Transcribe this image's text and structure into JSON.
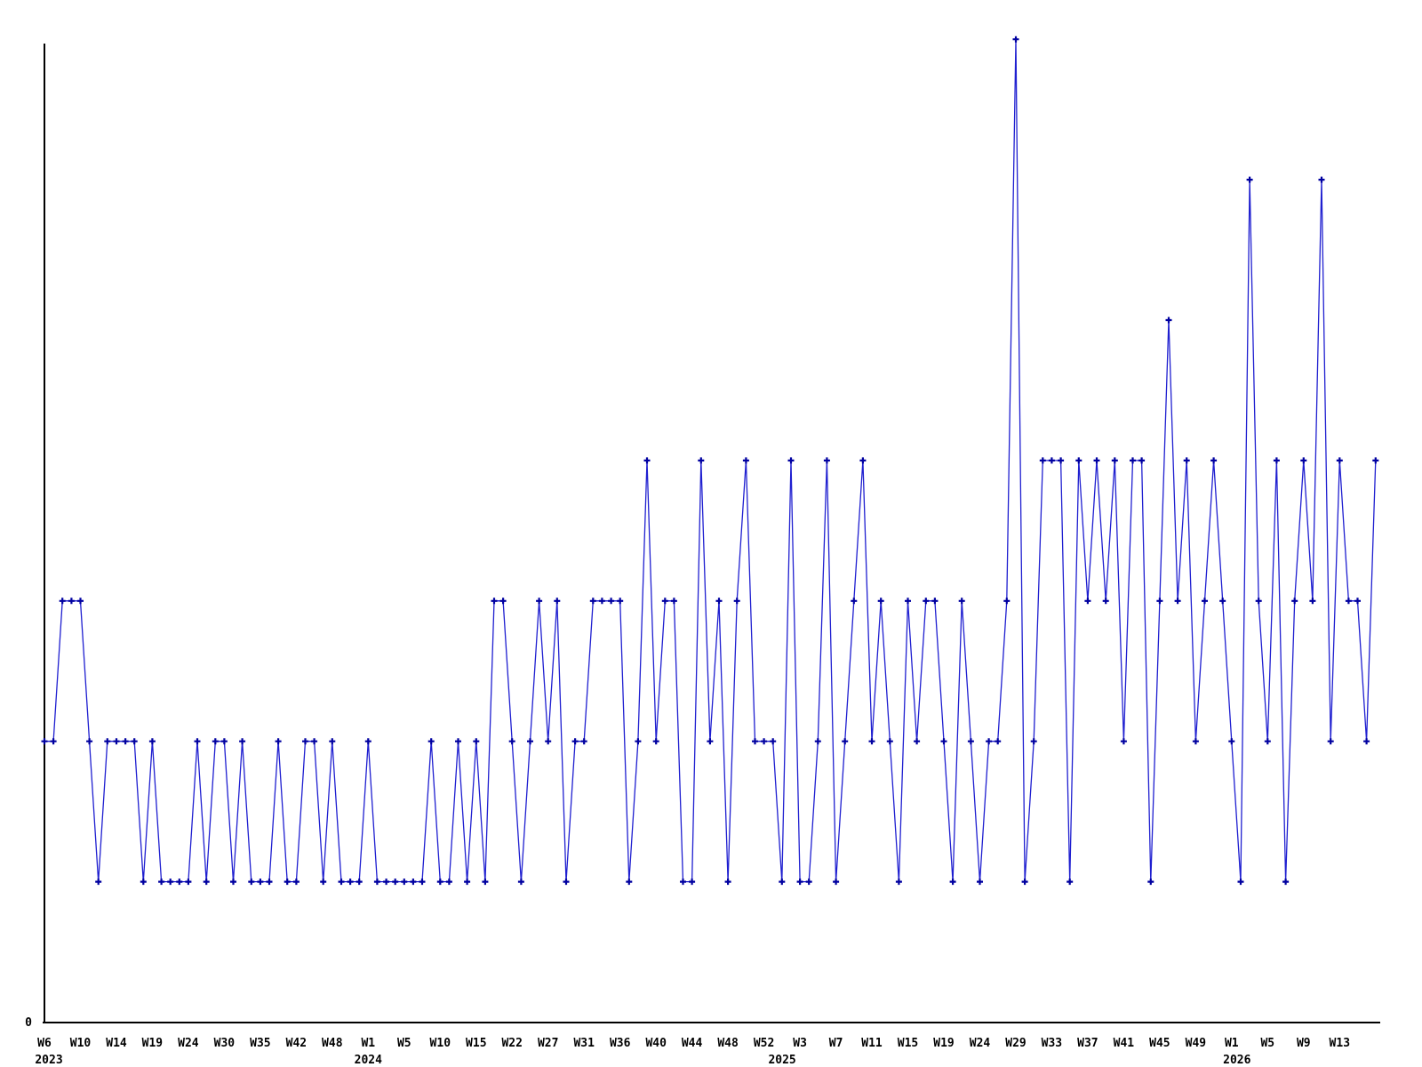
{
  "chart_data": {
    "type": "line",
    "title": "",
    "xlabel": "",
    "ylabel": "",
    "grid": false,
    "legend": false,
    "marker_style": "plus",
    "colors": {
      "line": "#1f1fd0",
      "marker": "#0000a0",
      "axis": "#000000",
      "text": "#000000",
      "background": "#ffffff"
    },
    "y_axis": {
      "origin_label": "0",
      "min": 0,
      "observed_max": 7
    },
    "x_tick_every": 4,
    "x_tick_labels": [
      "W6",
      "W10",
      "W14",
      "W19",
      "W24",
      "W30",
      "W35",
      "W42",
      "W48",
      "W1",
      "W5",
      "W10",
      "W15",
      "W22",
      "W27",
      "W31",
      "W36",
      "W40",
      "W44",
      "W48",
      "W52",
      "W3",
      "W7",
      "W11",
      "W15",
      "W19",
      "W24",
      "W29",
      "W33",
      "W37",
      "W41",
      "W45",
      "W49",
      "W1",
      "W5",
      "W9",
      "W13"
    ],
    "x_year_labels": [
      {
        "text": "2023",
        "tick": 0
      },
      {
        "text": "2024",
        "tick": 9
      },
      {
        "text": "2025",
        "tick": 21
      },
      {
        "text": "2026",
        "tick": 33
      }
    ],
    "values": [
      2,
      2,
      3,
      3,
      3,
      2,
      1,
      2,
      2,
      2,
      2,
      1,
      2,
      1,
      1,
      1,
      1,
      2,
      1,
      2,
      2,
      1,
      2,
      1,
      1,
      1,
      2,
      1,
      1,
      2,
      2,
      1,
      2,
      1,
      1,
      1,
      2,
      1,
      1,
      1,
      1,
      1,
      1,
      2,
      1,
      1,
      2,
      1,
      2,
      1,
      3,
      3,
      2,
      1,
      2,
      3,
      2,
      3,
      1,
      2,
      2,
      3,
      3,
      3,
      3,
      1,
      2,
      4,
      2,
      3,
      3,
      1,
      1,
      4,
      2,
      3,
      1,
      3,
      4,
      2,
      2,
      2,
      1,
      4,
      1,
      1,
      2,
      4,
      1,
      2,
      3,
      4,
      2,
      3,
      2,
      1,
      3,
      2,
      3,
      3,
      2,
      1,
      3,
      2,
      1,
      2,
      2,
      3,
      7,
      1,
      2,
      4,
      4,
      4,
      1,
      4,
      3,
      4,
      3,
      4,
      2,
      4,
      4,
      1,
      3,
      5,
      3,
      4,
      2,
      3,
      4,
      3,
      2,
      1,
      6,
      3,
      2,
      4,
      1,
      3,
      4,
      3,
      6,
      2,
      4,
      3,
      3,
      2,
      4
    ]
  }
}
